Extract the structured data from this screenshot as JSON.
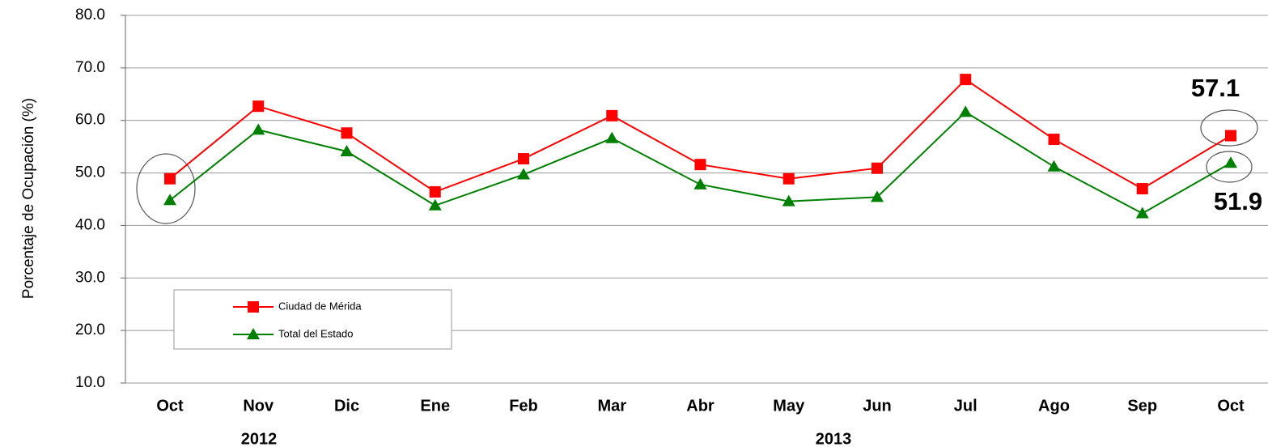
{
  "chart_data": {
    "type": "line",
    "y_label": "Porcentaje de Ocupación (%)",
    "categories": [
      "Oct",
      "Nov",
      "Dic",
      "Ene",
      "Feb",
      "Mar",
      "Abr",
      "May",
      "Jun",
      "Jul",
      "Ago",
      "Sep",
      "Oct"
    ],
    "year_labels": [
      "2012",
      "2013"
    ],
    "series": [
      {
        "name": "Ciudad de Mérida",
        "color": "#ff0000",
        "marker": "square",
        "values": [
          48.9,
          62.7,
          57.6,
          46.4,
          52.7,
          60.9,
          51.6,
          48.9,
          50.9,
          67.8,
          56.4,
          47.0,
          57.1
        ]
      },
      {
        "name": "Total del Estado",
        "color": "#008000",
        "marker": "triangle",
        "values": [
          44.8,
          58.2,
          54.1,
          43.8,
          49.7,
          56.6,
          47.8,
          44.6,
          45.4,
          61.6,
          51.2,
          42.3,
          51.9
        ]
      }
    ],
    "ylim": [
      10,
      80
    ],
    "yticks": [
      {
        "value": 10,
        "label": "10.0"
      },
      {
        "value": 20,
        "label": "20.0"
      },
      {
        "value": 30,
        "label": "30.0"
      },
      {
        "value": 40,
        "label": "40.0"
      },
      {
        "value": 50,
        "label": "50.0"
      },
      {
        "value": 60,
        "label": "60.0"
      },
      {
        "value": 70,
        "label": "70.0"
      },
      {
        "value": 80,
        "label": "80.0"
      }
    ],
    "grid": true
  }
}
